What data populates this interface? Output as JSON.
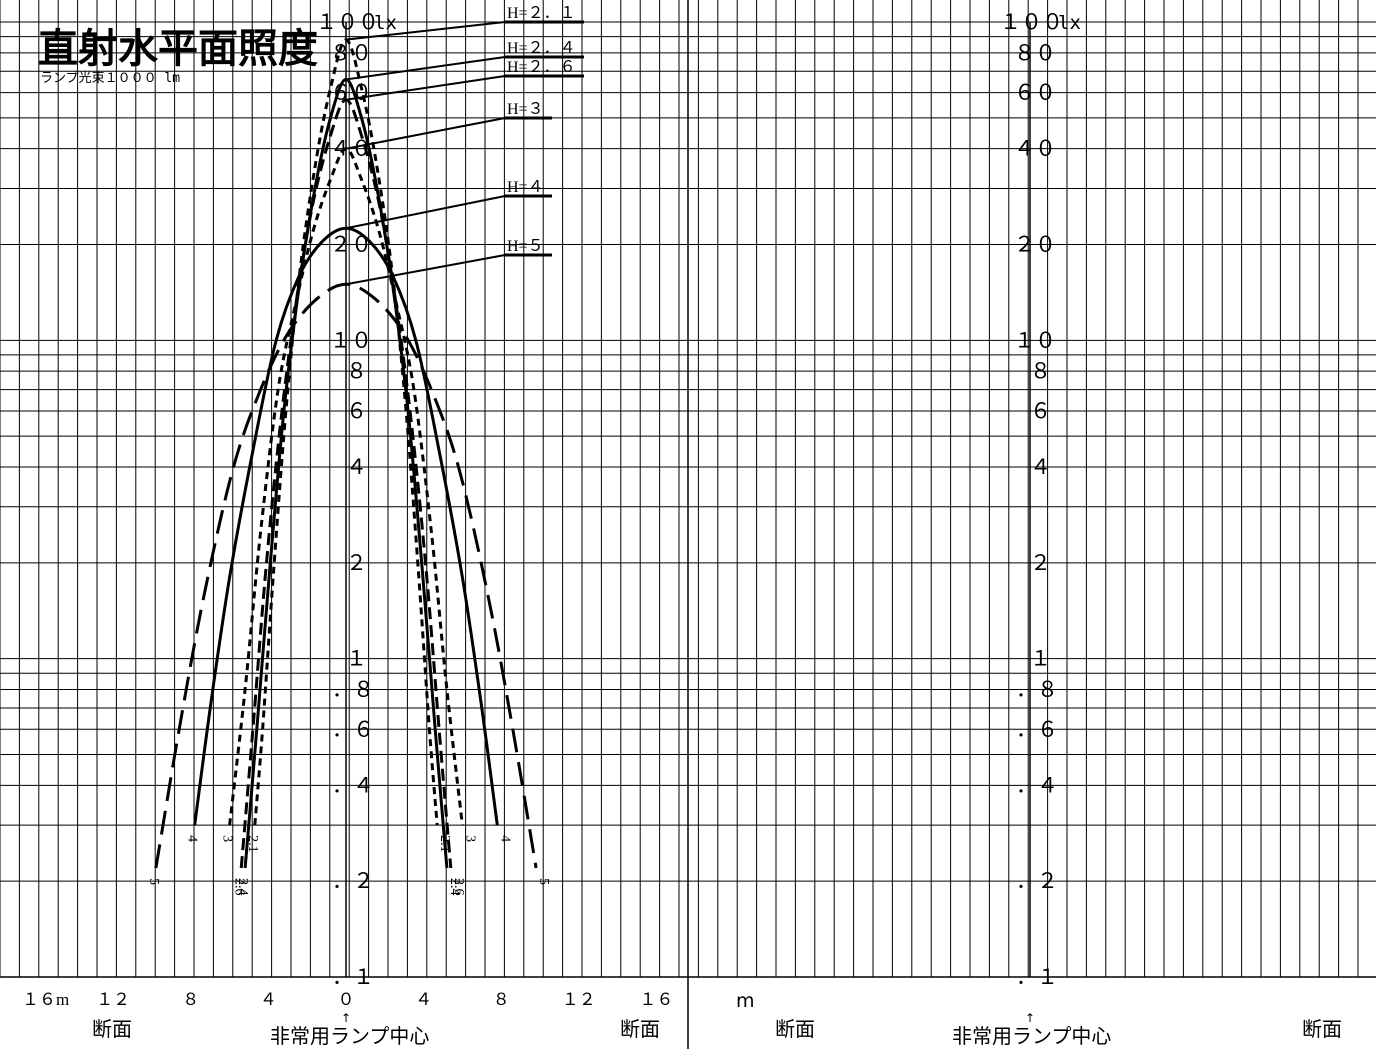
{
  "title": "直射水平面照度",
  "subtitle": "ランプ光束１０００ lm",
  "chart_data": [
    {
      "type": "line",
      "title": "直射水平面照度",
      "subtitle": "ランプ光束１０００ lm",
      "y_scale": "log",
      "y_unit": "lx",
      "ylim": [
        0.1,
        100
      ],
      "xlim": [
        -16,
        16
      ],
      "x_unit": "m",
      "y_tick_labels": [
        {
          "value": 100,
          "text": "１００"
        },
        {
          "value": 80,
          "text": "８０"
        },
        {
          "value": 60,
          "text": "６０"
        },
        {
          "value": 40,
          "text": "４０"
        },
        {
          "value": 20,
          "text": "２０"
        },
        {
          "value": 10,
          "text": "１０"
        },
        {
          "value": 8,
          "text": "８"
        },
        {
          "value": 6,
          "text": "６"
        },
        {
          "value": 4,
          "text": "４"
        },
        {
          "value": 2,
          "text": "２"
        },
        {
          "value": 1,
          "text": "１"
        },
        {
          "value": 0.8,
          "text": "．８"
        },
        {
          "value": 0.6,
          "text": "．６"
        },
        {
          "value": 0.4,
          "text": "．４"
        },
        {
          "value": 0.2,
          "text": "．２"
        },
        {
          "value": 0.1,
          "text": "．１"
        }
      ],
      "y_unit_label": "lx",
      "x_tick_labels": [
        {
          "value": -16,
          "text": "１６m"
        },
        {
          "value": -12,
          "text": "１２"
        },
        {
          "value": -8,
          "text": "８"
        },
        {
          "value": -4,
          "text": "４"
        },
        {
          "value": 0,
          "text": "０"
        },
        {
          "value": 4,
          "text": "４"
        },
        {
          "value": 8,
          "text": "８"
        },
        {
          "value": 12,
          "text": "１２"
        },
        {
          "value": 16,
          "text": "１６"
        }
      ],
      "x_captions": {
        "left": "断面",
        "center": "非常用ランプ中心",
        "right": "断面",
        "arrow": "↑"
      },
      "grid": true,
      "series": [
        {
          "name": "H=２．１",
          "end_label": "2.1",
          "style": "dotted",
          "peak": 88,
          "x": [
            -4.7,
            -4.3,
            -3.7,
            -3.1,
            -2.4,
            -1.6,
            -0.8,
            0,
            0.8,
            1.6,
            2.4,
            3.1,
            3.7,
            4.3,
            4.7
          ],
          "y": [
            0.3,
            0.6,
            2,
            6,
            16,
            35,
            62,
            88,
            62,
            35,
            16,
            6,
            2,
            0.6,
            0.3
          ]
        },
        {
          "name": "H=２．４",
          "end_label": "2.4",
          "style": "solid",
          "peak": 66,
          "x": [
            -5.2,
            -4.6,
            -3.9,
            -3.2,
            -2.4,
            -1.6,
            -0.8,
            0,
            0.8,
            1.6,
            2.4,
            3.2,
            3.9,
            4.6,
            5.2
          ],
          "y": [
            0.22,
            0.6,
            2,
            6,
            15,
            30,
            50,
            66,
            50,
            30,
            15,
            6,
            2,
            0.6,
            0.22
          ]
        },
        {
          "name": "H=２．６",
          "end_label": "2.6",
          "style": "dashed",
          "peak": 57,
          "x": [
            -5.4,
            -4.8,
            -4.1,
            -3.3,
            -2.5,
            -1.7,
            -0.8,
            0,
            0.8,
            1.7,
            2.5,
            3.3,
            4.1,
            4.8,
            5.4
          ],
          "y": [
            0.22,
            0.6,
            2,
            6,
            14,
            27,
            44,
            57,
            44,
            27,
            14,
            6,
            2,
            0.6,
            0.22
          ]
        },
        {
          "name": "H=３",
          "end_label": "3",
          "style": "dotted",
          "peak": 40,
          "x": [
            -6,
            -5.2,
            -4.4,
            -3.5,
            -2.6,
            -1.7,
            -0.8,
            0,
            0.8,
            1.7,
            2.6,
            3.5,
            4.4,
            5.2,
            6
          ],
          "y": [
            0.3,
            0.8,
            2.5,
            7,
            13,
            22,
            32,
            40,
            32,
            22,
            13,
            7,
            2.5,
            0.8,
            0.3
          ]
        },
        {
          "name": "H=４",
          "end_label": "4",
          "style": "solid",
          "peak": 22.5,
          "x": [
            -7.8,
            -7,
            -6,
            -4.8,
            -3.6,
            -2.4,
            -1.2,
            0,
            1.2,
            2.4,
            3.6,
            4.8,
            6,
            7,
            7.8
          ],
          "y": [
            0.3,
            0.7,
            1.8,
            4.5,
            10,
            16,
            20.5,
            22.5,
            20.5,
            16,
            10,
            4.5,
            1.8,
            0.7,
            0.3
          ]
        },
        {
          "name": "H=５",
          "end_label": "5",
          "style": "longdash",
          "peak": 15,
          "x": [
            -9.8,
            -8.6,
            -7.3,
            -5.8,
            -4.4,
            -3,
            -1.5,
            0,
            1.5,
            3,
            4.4,
            5.8,
            7.3,
            8.6,
            9.8
          ],
          "y": [
            0.22,
            0.6,
            1.6,
            4,
            7,
            10.5,
            13.5,
            15,
            13.5,
            10.5,
            7,
            4,
            1.6,
            0.6,
            0.22
          ]
        }
      ]
    },
    {
      "type": "line",
      "title": "",
      "y_scale": "log",
      "y_unit": "lx",
      "ylim": [
        0.1,
        100
      ],
      "x_unit": "m",
      "y_tick_labels": [
        {
          "value": 100,
          "text": "１００"
        },
        {
          "value": 80,
          "text": "８０"
        },
        {
          "value": 60,
          "text": "６０"
        },
        {
          "value": 40,
          "text": "４０"
        },
        {
          "value": 20,
          "text": "２０"
        },
        {
          "value": 10,
          "text": "１０"
        },
        {
          "value": 8,
          "text": "８"
        },
        {
          "value": 6,
          "text": "６"
        },
        {
          "value": 4,
          "text": "４"
        },
        {
          "value": 2,
          "text": "２"
        },
        {
          "value": 1,
          "text": "１"
        },
        {
          "value": 0.8,
          "text": "．８"
        },
        {
          "value": 0.6,
          "text": "．６"
        },
        {
          "value": 0.4,
          "text": "．４"
        },
        {
          "value": 0.2,
          "text": "．２"
        },
        {
          "value": 0.1,
          "text": "．１"
        }
      ],
      "y_unit_label": "lx",
      "x_unit_label": "m",
      "x_captions": {
        "left": "断面",
        "center": "非常用ランプ中心",
        "right": "断面",
        "arrow": "↑"
      },
      "grid": true,
      "series": []
    }
  ]
}
